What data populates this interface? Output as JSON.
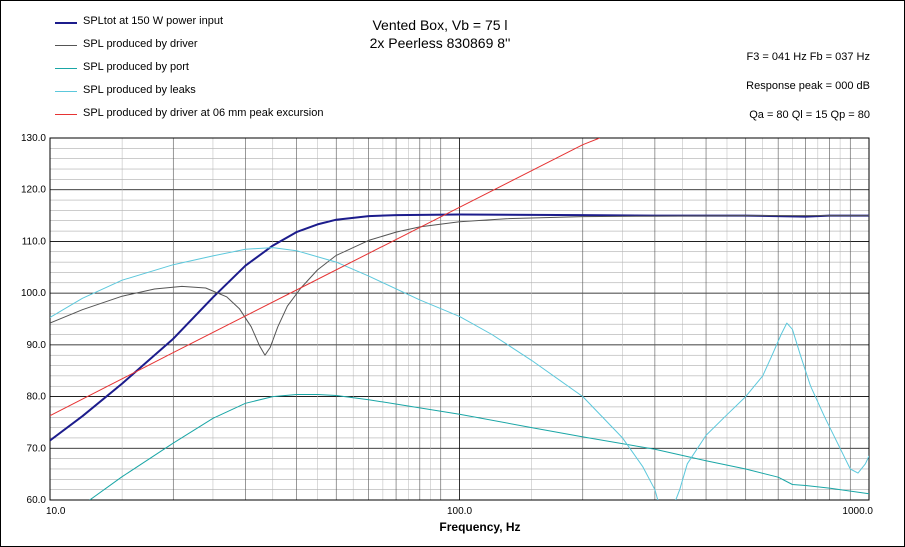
{
  "header": {
    "title_line1": "Vented Box, Vb = 75 l",
    "title_line2": "2x Peerless 830869 8''",
    "info_line1": "F3 = 041 Hz  Fb = 037 Hz",
    "info_line2": "Response peak = 000 dB",
    "info_line3": "Qa = 80  Ql = 15  Qp = 80"
  },
  "chart_data": {
    "type": "line",
    "x_scale": "log",
    "xlim": [
      10,
      1000
    ],
    "ylim": [
      60,
      130
    ],
    "xlabel": "Frequency, Hz",
    "ylabel": "",
    "grid": true,
    "legend_position": "top-left",
    "x_ticks": [
      "10.0",
      "100.0",
      "1000.0"
    ],
    "y_ticks": [
      "60.0",
      "70.0",
      "80.0",
      "90.0",
      "100.0",
      "110.0",
      "120.0",
      "130.0"
    ],
    "series": [
      {
        "name": "SPLtot at 150 W power input",
        "color": "#1c1c8c",
        "width": 2,
        "points": [
          [
            10,
            71.5
          ],
          [
            12,
            76.2
          ],
          [
            15,
            82.5
          ],
          [
            20,
            91.2
          ],
          [
            25,
            99.2
          ],
          [
            30,
            105.3
          ],
          [
            35,
            109.2
          ],
          [
            40,
            111.8
          ],
          [
            45,
            113.3
          ],
          [
            50,
            114.2
          ],
          [
            60,
            114.9
          ],
          [
            70,
            115.1
          ],
          [
            100,
            115.2
          ],
          [
            200,
            115.1
          ],
          [
            300,
            115.0
          ],
          [
            500,
            115.0
          ],
          [
            700,
            114.8
          ],
          [
            800,
            115.0
          ],
          [
            1000,
            115.0
          ]
        ]
      },
      {
        "name": "SPL produced by driver",
        "color": "#555555",
        "width": 1,
        "points": [
          [
            10,
            94.2
          ],
          [
            12,
            96.8
          ],
          [
            15,
            99.4
          ],
          [
            18,
            100.8
          ],
          [
            21,
            101.3
          ],
          [
            24,
            101.0
          ],
          [
            27,
            99.3
          ],
          [
            29,
            97.0
          ],
          [
            31,
            93.5
          ],
          [
            32.5,
            89.8
          ],
          [
            33.5,
            88.0
          ],
          [
            34.5,
            89.5
          ],
          [
            36,
            93.5
          ],
          [
            38,
            97.5
          ],
          [
            41,
            101.0
          ],
          [
            45,
            104.5
          ],
          [
            50,
            107.3
          ],
          [
            60,
            110.2
          ],
          [
            70,
            111.8
          ],
          [
            80,
            112.8
          ],
          [
            100,
            113.8
          ],
          [
            130,
            114.4
          ],
          [
            200,
            114.8
          ],
          [
            500,
            115.0
          ],
          [
            1000,
            115.0
          ]
        ]
      },
      {
        "name": "SPL produced by port",
        "color": "#1aa6a6",
        "width": 1,
        "points": [
          [
            12.5,
            60
          ],
          [
            15,
            64.5
          ],
          [
            20,
            71
          ],
          [
            25,
            75.8
          ],
          [
            30,
            78.7
          ],
          [
            35,
            80.0
          ],
          [
            40,
            80.4
          ],
          [
            45,
            80.4
          ],
          [
            50,
            80.2
          ],
          [
            60,
            79.4
          ],
          [
            80,
            77.8
          ],
          [
            100,
            76.6
          ],
          [
            150,
            74.0
          ],
          [
            200,
            72.2
          ],
          [
            300,
            69.8
          ],
          [
            400,
            67.6
          ],
          [
            500,
            66.0
          ],
          [
            600,
            64.4
          ],
          [
            650,
            63.0
          ],
          [
            700,
            62.8
          ],
          [
            800,
            62.3
          ],
          [
            1000,
            61.2
          ]
        ]
      },
      {
        "name": "SPL produced by leaks",
        "color": "#5cc8dc",
        "width": 1,
        "points": [
          [
            10,
            95.3
          ],
          [
            12,
            99.0
          ],
          [
            15,
            102.5
          ],
          [
            20,
            105.5
          ],
          [
            25,
            107.2
          ],
          [
            30,
            108.5
          ],
          [
            35,
            108.8
          ],
          [
            40,
            108.2
          ],
          [
            50,
            106.0
          ],
          [
            60,
            103.3
          ],
          [
            80,
            98.7
          ],
          [
            100,
            95.5
          ],
          [
            120,
            92.0
          ],
          [
            150,
            87.0
          ],
          [
            200,
            80.0
          ],
          [
            250,
            72.0
          ],
          [
            280,
            66.5
          ],
          [
            300,
            62.0
          ],
          [
            310,
            58.0
          ],
          [
            330,
            58.0
          ],
          [
            345,
            62.0
          ],
          [
            360,
            67.0
          ],
          [
            400,
            72.5
          ],
          [
            450,
            76.5
          ],
          [
            500,
            80.0
          ],
          [
            550,
            84.0
          ],
          [
            580,
            88.0
          ],
          [
            610,
            92.0
          ],
          [
            630,
            94.2
          ],
          [
            650,
            93.0
          ],
          [
            680,
            88.0
          ],
          [
            720,
            82.0
          ],
          [
            780,
            76.0
          ],
          [
            850,
            70.0
          ],
          [
            900,
            66.0
          ],
          [
            940,
            65.2
          ],
          [
            980,
            67.0
          ],
          [
            1000,
            68.5
          ]
        ]
      },
      {
        "name": "SPL produced by driver at 06 mm peak excursion",
        "color": "#e63333",
        "width": 1,
        "points": [
          [
            10,
            76.3
          ],
          [
            20,
            88.5
          ],
          [
            40,
            100.6
          ],
          [
            100,
            116.6
          ],
          [
            200,
            128.7
          ],
          [
            220,
            130
          ]
        ]
      }
    ]
  }
}
